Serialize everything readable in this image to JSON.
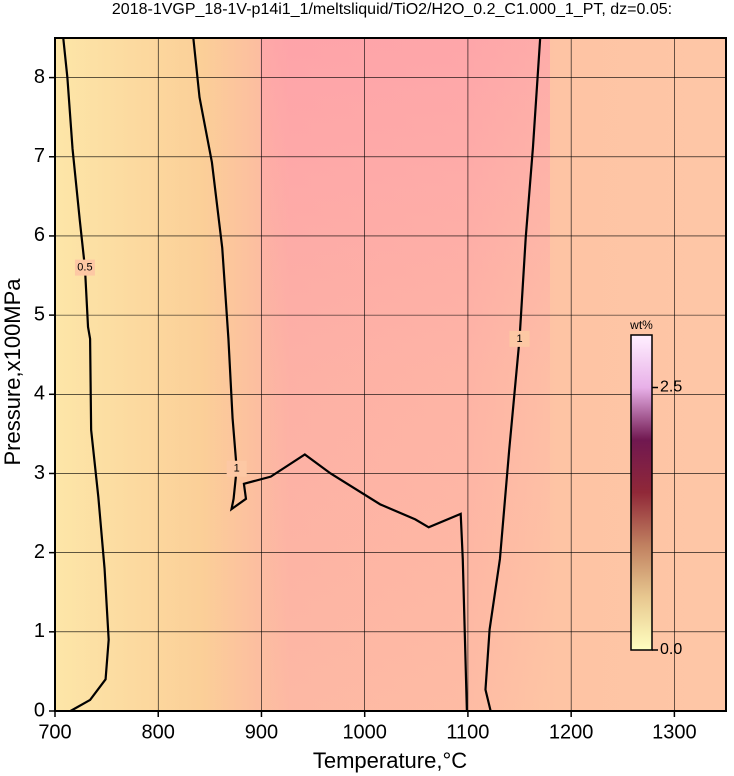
{
  "chart_data": {
    "type": "contour",
    "title": "2018-1VGP_18-1V-p14i1_1/meltsliquid/TiO2/H2O_0.2_C1.000_1_PT, dz=0.05:",
    "x_label": "Temperature,°C",
    "y_label": "Pressure,x100MPa",
    "xlim": [
      700,
      1350
    ],
    "ylim": [
      0,
      8.5
    ],
    "xticks": [
      700,
      800,
      900,
      1000,
      1100,
      1200,
      1300
    ],
    "yticks": [
      0,
      1,
      2,
      3,
      4,
      5,
      6,
      7,
      8
    ],
    "grid": true,
    "series": [
      {
        "name": "0.5",
        "color": "#000000",
        "x": [
          708,
          712,
          717,
          724,
          729,
          732,
          734,
          735,
          742,
          748,
          752,
          749,
          734,
          715
        ],
        "values": [
          8.5,
          8.0,
          7.1,
          6.2,
          5.6,
          4.85,
          4.7,
          3.55,
          2.7,
          1.8,
          0.9,
          0.4,
          0.14,
          0
        ]
      },
      {
        "name": "1",
        "color": "#000000",
        "x": [
          834,
          840,
          852,
          862,
          868,
          872,
          876,
          873,
          871,
          885,
          883,
          909,
          942,
          967,
          1015,
          1049,
          1062,
          1093,
          1095,
          1099
        ],
        "values": [
          8.5,
          7.75,
          6.93,
          5.85,
          4.7,
          3.7,
          3.06,
          2.68,
          2.55,
          2.68,
          2.87,
          2.96,
          3.24,
          3.0,
          2.61,
          2.42,
          2.32,
          2.49,
          1.92,
          0
        ]
      },
      {
        "name": "1",
        "color": "#000000",
        "x": [
          1170,
          1163,
          1156,
          1150,
          1140,
          1131,
          1121,
          1117,
          1122
        ],
        "values": [
          8.5,
          7.12,
          5.98,
          4.7,
          3.3,
          1.92,
          1.03,
          0.27,
          0
        ]
      }
    ],
    "colorbar": {
      "label": "wt%",
      "lim": [
        0,
        3.0
      ],
      "ticks": [
        {
          "value": 0,
          "label": "0.0"
        },
        {
          "value": 2.5,
          "label": "2.5"
        }
      ],
      "colors": [
        "#ffffc0",
        "#e8c890",
        "#c08060",
        "#902838",
        "#701850",
        "#e8b0e8",
        "#fff0ff"
      ]
    }
  }
}
